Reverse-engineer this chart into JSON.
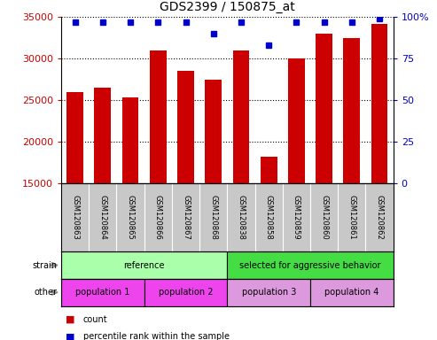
{
  "title": "GDS2399 / 150875_at",
  "samples": [
    "GSM120863",
    "GSM120864",
    "GSM120865",
    "GSM120866",
    "GSM120867",
    "GSM120868",
    "GSM120838",
    "GSM120858",
    "GSM120859",
    "GSM120860",
    "GSM120861",
    "GSM120862"
  ],
  "counts": [
    26000,
    26500,
    25400,
    31000,
    28500,
    27500,
    31000,
    18200,
    30000,
    33000,
    32500,
    34200
  ],
  "percentile_ranks": [
    97,
    97,
    97,
    97,
    97,
    90,
    97,
    83,
    97,
    97,
    97,
    99
  ],
  "ylim": [
    15000,
    35000
  ],
  "yticks": [
    15000,
    20000,
    25000,
    30000,
    35000
  ],
  "right_yticks": [
    0,
    25,
    50,
    75,
    100
  ],
  "right_ylim": [
    0,
    100
  ],
  "bar_color": "#cc0000",
  "dot_color": "#0000cc",
  "strain_labels": [
    {
      "text": "reference",
      "start": 0,
      "end": 6,
      "color": "#aaffaa"
    },
    {
      "text": "selected for aggressive behavior",
      "start": 6,
      "end": 12,
      "color": "#44dd44"
    }
  ],
  "other_labels": [
    {
      "text": "population 1",
      "start": 0,
      "end": 3,
      "color": "#ee44ee"
    },
    {
      "text": "population 2",
      "start": 3,
      "end": 6,
      "color": "#ee44ee"
    },
    {
      "text": "population 3",
      "start": 6,
      "end": 9,
      "color": "#dd99dd"
    },
    {
      "text": "population 4",
      "start": 9,
      "end": 12,
      "color": "#dd99dd"
    }
  ],
  "legend_count_color": "#cc0000",
  "legend_percentile_color": "#0000cc",
  "bg_color": "#ffffff",
  "tick_label_color": "#cc0000",
  "right_tick_label_color": "#0000cc",
  "xlabel_bg": "#c8c8c8",
  "xlabel_divider_color": "#ffffff"
}
